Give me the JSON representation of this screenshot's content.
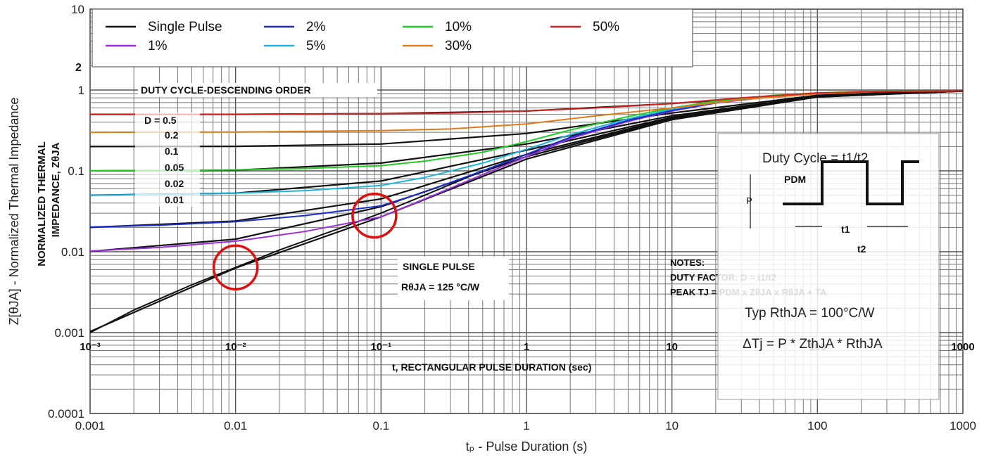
{
  "chart_data": {
    "type": "line",
    "x_scale": "log",
    "y_scale": "log",
    "xlim": [
      0.001,
      1000
    ],
    "ylim": [
      0.0001,
      10
    ],
    "xlabel": "tₚ - Pulse Duration (s)",
    "ylabel": "Z[θJA] - Normalized Thermal Impedance",
    "x_tick_labels": [
      "0.001",
      "0.01",
      "0.1",
      "1",
      "10",
      "100",
      "1000"
    ],
    "y_tick_labels": [
      "0.0001",
      "0.001",
      "0.01",
      "0.1",
      "1",
      "10"
    ],
    "grid": true,
    "legend_position": "top",
    "series": [
      {
        "name": "Single Pulse",
        "color": "#111111",
        "x": [
          0.001,
          0.002,
          0.005,
          0.01,
          0.02,
          0.05,
          0.1,
          0.2,
          0.5,
          1,
          2,
          5,
          10,
          20,
          50,
          100,
          200,
          500,
          1000
        ],
        "y": [
          0.001,
          0.0019,
          0.0039,
          0.0064,
          0.0105,
          0.019,
          0.03,
          0.05,
          0.1,
          0.16,
          0.26,
          0.42,
          0.56,
          0.7,
          0.84,
          0.91,
          0.95,
          0.97,
          0.97
        ]
      },
      {
        "name": "1%",
        "color": "#9b30d9",
        "x": [
          0.001,
          0.003,
          0.01,
          0.03,
          0.1,
          0.2,
          0.5,
          1,
          2,
          5,
          10,
          20,
          50,
          100,
          200,
          500,
          1000
        ],
        "y": [
          0.0102,
          0.0113,
          0.0135,
          0.0178,
          0.027,
          0.045,
          0.09,
          0.15,
          0.25,
          0.41,
          0.55,
          0.69,
          0.83,
          0.9,
          0.95,
          0.97,
          0.97
        ]
      },
      {
        "name": "2%",
        "color": "#1a2ccc",
        "x": [
          0.001,
          0.003,
          0.01,
          0.03,
          0.1,
          0.2,
          0.5,
          1,
          2,
          5,
          10,
          20,
          50,
          100,
          200,
          500,
          1000
        ],
        "y": [
          0.0202,
          0.0213,
          0.0235,
          0.028,
          0.037,
          0.055,
          0.1,
          0.16,
          0.26,
          0.42,
          0.56,
          0.7,
          0.84,
          0.91,
          0.95,
          0.97,
          0.97
        ]
      },
      {
        "name": "5%",
        "color": "#1bb4e0",
        "x": [
          0.001,
          0.003,
          0.01,
          0.03,
          0.1,
          0.2,
          0.5,
          1,
          2,
          5,
          10,
          20,
          50,
          100,
          200,
          500,
          1000
        ],
        "y": [
          0.05,
          0.051,
          0.053,
          0.057,
          0.066,
          0.083,
          0.125,
          0.185,
          0.28,
          0.44,
          0.58,
          0.71,
          0.85,
          0.91,
          0.95,
          0.97,
          0.97
        ]
      },
      {
        "name": "10%",
        "color": "#22cc22",
        "x": [
          0.001,
          0.003,
          0.01,
          0.03,
          0.1,
          0.2,
          0.5,
          1,
          2,
          5,
          10,
          20,
          50,
          100,
          200,
          500,
          1000
        ],
        "y": [
          0.1,
          0.101,
          0.103,
          0.107,
          0.116,
          0.132,
          0.17,
          0.23,
          0.32,
          0.47,
          0.6,
          0.73,
          0.86,
          0.92,
          0.96,
          0.97,
          0.97
        ]
      },
      {
        "name": "30%",
        "color": "#e07a1a",
        "x": [
          0.001,
          0.01,
          0.1,
          0.3,
          1,
          3,
          10,
          30,
          100,
          300,
          1000
        ],
        "y": [
          0.3,
          0.302,
          0.315,
          0.33,
          0.38,
          0.48,
          0.6,
          0.76,
          0.9,
          0.96,
          0.97
        ]
      },
      {
        "name": "50%",
        "color": "#d42020",
        "x": [
          0.001,
          0.01,
          0.1,
          0.3,
          1,
          3,
          10,
          30,
          100,
          300,
          1000
        ],
        "y": [
          0.5,
          0.501,
          0.51,
          0.52,
          0.55,
          0.6,
          0.68,
          0.8,
          0.92,
          0.96,
          0.97
        ]
      }
    ],
    "reference_curves": [
      {
        "label": "D = 0.5",
        "y": [
          0.5,
          0.5,
          0.51,
          0.55,
          0.68,
          0.92,
          0.97
        ]
      },
      {
        "label": "0.2",
        "y": [
          0.2,
          0.201,
          0.215,
          0.29,
          0.52,
          0.86,
          0.97
        ]
      },
      {
        "label": "0.1",
        "y": [
          0.1,
          0.102,
          0.125,
          0.215,
          0.48,
          0.84,
          0.97
        ]
      },
      {
        "label": "0.05",
        "y": [
          0.05,
          0.053,
          0.075,
          0.18,
          0.46,
          0.83,
          0.97
        ]
      },
      {
        "label": "0.02",
        "y": [
          0.02,
          0.024,
          0.045,
          0.16,
          0.45,
          0.83,
          0.97
        ]
      },
      {
        "label": "0.01",
        "y": [
          0.0101,
          0.0143,
          0.036,
          0.15,
          0.44,
          0.82,
          0.97
        ]
      },
      {
        "label": "single",
        "y": [
          0.00103,
          0.0063,
          0.027,
          0.14,
          0.43,
          0.82,
          0.97
        ]
      }
    ],
    "reference_x": [
      0.001,
      0.01,
      0.1,
      1,
      10,
      100,
      1000
    ],
    "highlights": [
      {
        "x": 0.01,
        "y": 0.0064,
        "color": "#e01010"
      },
      {
        "x": 0.09,
        "y": 0.028,
        "color": "#e01010"
      }
    ]
  },
  "overlay": {
    "left_label_line1": "NORMALIZED THERMAL",
    "left_label_line2": "IMPEDANCE, ZθJA",
    "y_tick_2": "2",
    "duty_cycle_title": "DUTY CYCLE-DESCENDING ORDER",
    "d_labels": [
      "D = 0.5",
      "0.2",
      "0.1",
      "0.05",
      "0.02",
      "0.01"
    ],
    "x_tick_labels": [
      "10⁻³",
      "10⁻²",
      "10⁻¹",
      "1",
      "10",
      "100",
      "1000"
    ],
    "x_axis_label": "t, RECTANGULAR PULSE DURATION (sec)",
    "single_pulse": "SINGLE PULSE",
    "r_theta": "RθJA = 125 °C/W",
    "notes_title": "NOTES:",
    "duty_factor": "DUTY FACTOR: D = t1/t2",
    "peak_tj": "PEAK TJ = PDM x ZθJA x RθJA + TA"
  },
  "inset": {
    "duty_cycle": "Duty Cycle = t1/t2",
    "pdm": "PDM",
    "p_label": "P",
    "t1": "t1",
    "t2": "t2",
    "typ_rth": "Typ RthJA = 100°C/W",
    "delta_tj": "ΔTj = P * ZthJA * RthJA"
  }
}
